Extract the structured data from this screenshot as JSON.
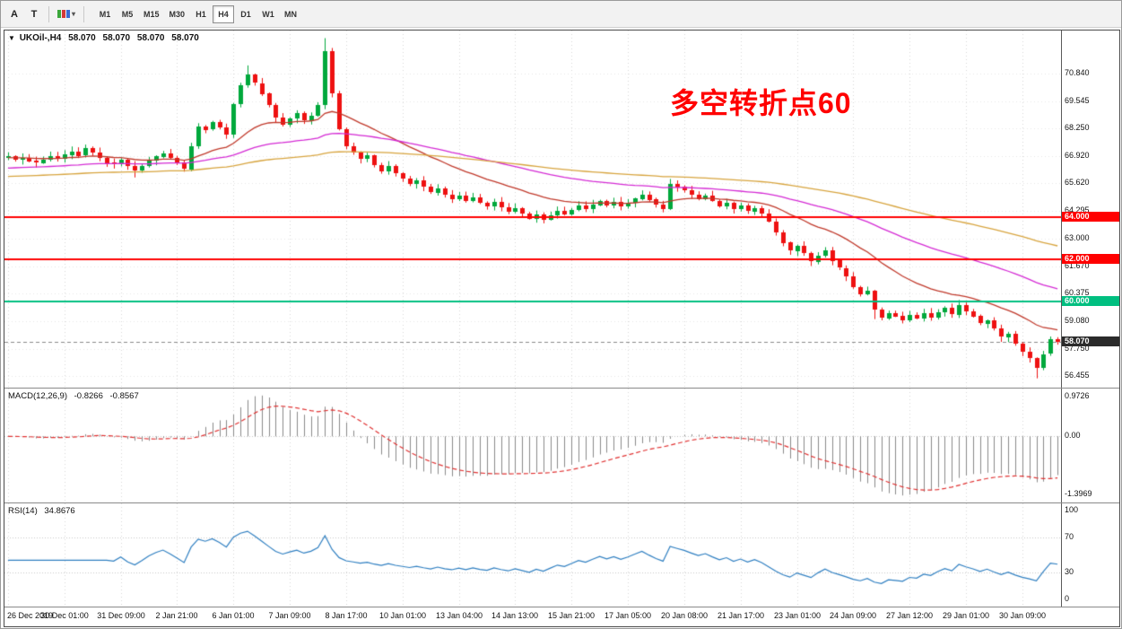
{
  "toolbar": {
    "buttons": [
      {
        "label": "A"
      },
      {
        "label": "T"
      }
    ],
    "dropdown_caret": "▾",
    "timeframes": [
      {
        "label": "M1",
        "active": false
      },
      {
        "label": "M5",
        "active": false
      },
      {
        "label": "M15",
        "active": false
      },
      {
        "label": "M30",
        "active": false
      },
      {
        "label": "H1",
        "active": false
      },
      {
        "label": "H4",
        "active": true
      },
      {
        "label": "D1",
        "active": false
      },
      {
        "label": "W1",
        "active": false
      },
      {
        "label": "MN",
        "active": false
      }
    ]
  },
  "chart": {
    "header": {
      "expander": "▼",
      "symbol": "UKOil-,H4",
      "open": "58.070",
      "high": "58.070",
      "low": "58.070",
      "close": "58.070"
    },
    "annotation": {
      "text": "多空转折点60",
      "color": "#ff0000"
    },
    "price_axis": {
      "items": [
        {
          "t": "70.840",
          "p": 70.84
        },
        {
          "t": "69.545",
          "p": 69.545
        },
        {
          "t": "68.250",
          "p": 68.25
        },
        {
          "t": "66.920",
          "p": 66.92
        },
        {
          "t": "65.620",
          "p": 65.62
        },
        {
          "t": "64.295",
          "p": 64.295
        },
        {
          "t": "63.000",
          "p": 63.0
        },
        {
          "t": "61.670",
          "p": 61.67
        },
        {
          "t": "60.375",
          "p": 60.375
        },
        {
          "t": "59.080",
          "p": 59.08
        },
        {
          "t": "57.750",
          "p": 57.75
        },
        {
          "t": "56.455",
          "p": 56.455
        }
      ]
    },
    "levels": [
      {
        "label": "64.000",
        "price": 64.0,
        "color": "#ff0000"
      },
      {
        "label": "62.000",
        "price": 62.0,
        "color": "#ff0000"
      },
      {
        "label": "60.000",
        "price": 60.0,
        "color": "#00bf80"
      }
    ],
    "current_price": {
      "label": "58.070",
      "price": 58.07,
      "bg": "#2b2b2b"
    }
  },
  "macd": {
    "title": "MACD(12,26,9)",
    "value": "-0.8266",
    "signal_value": "-0.8567",
    "scale_top": "0.9726",
    "scale_zero": "0.00",
    "scale_bottom": "-1.3969"
  },
  "rsi": {
    "title": "RSI(14)",
    "value": "34.8676",
    "scale": [
      {
        "t": "100",
        "v": 100
      },
      {
        "t": "70",
        "v": 70
      },
      {
        "t": "30",
        "v": 30
      },
      {
        "t": "0",
        "v": 0
      }
    ],
    "levels": [
      70,
      30
    ]
  },
  "time_axis": {
    "labels": [
      "26 Dec 2019",
      "30 Dec 01:00",
      "31 Dec 09:00",
      "2 Jan 21:00",
      "6 Jan 01:00",
      "7 Jan 09:00",
      "8 Jan 17:00",
      "10 Jan 01:00",
      "13 Jan 04:00",
      "14 Jan 13:00",
      "15 Jan 21:00",
      "17 Jan 05:00",
      "20 Jan 08:00",
      "21 Jan 17:00",
      "23 Jan 01:00",
      "24 Jan 09:00",
      "27 Jan 12:00",
      "29 Jan 01:00",
      "30 Jan 09:00"
    ]
  },
  "chart_data": {
    "type": "candlestick",
    "symbol": "UKOil-",
    "timeframe": "H4",
    "title": "UKOil-,H4",
    "y_range": [
      55.9,
      72.9
    ],
    "tick_step": 8,
    "first_open": 66.8,
    "closes": [
      66.9,
      66.75,
      66.85,
      66.7,
      66.6,
      66.75,
      66.9,
      66.8,
      67.0,
      67.15,
      66.95,
      67.3,
      67.1,
      66.85,
      66.6,
      66.55,
      66.75,
      66.45,
      66.25,
      66.45,
      66.7,
      66.9,
      67.05,
      66.85,
      66.6,
      66.3,
      67.4,
      68.35,
      68.2,
      68.55,
      68.3,
      67.95,
      69.4,
      70.3,
      70.8,
      70.4,
      69.9,
      69.35,
      68.75,
      68.4,
      68.7,
      68.95,
      68.6,
      68.85,
      69.35,
      71.9,
      69.9,
      68.2,
      67.4,
      67.1,
      66.8,
      66.95,
      66.5,
      66.2,
      66.45,
      66.1,
      65.85,
      65.6,
      65.75,
      65.45,
      65.2,
      65.4,
      65.1,
      64.9,
      65.05,
      64.8,
      64.95,
      64.7,
      64.55,
      64.75,
      64.5,
      64.3,
      64.45,
      64.2,
      63.95,
      64.15,
      63.9,
      64.1,
      64.3,
      64.15,
      64.35,
      64.55,
      64.4,
      64.6,
      64.8,
      64.6,
      64.75,
      64.55,
      64.7,
      64.9,
      65.1,
      64.85,
      64.6,
      64.4,
      65.6,
      65.45,
      65.3,
      65.1,
      64.9,
      65.05,
      64.8,
      64.55,
      64.7,
      64.4,
      64.55,
      64.3,
      64.45,
      64.2,
      63.8,
      63.3,
      62.8,
      62.4,
      62.65,
      62.3,
      61.9,
      62.2,
      62.45,
      61.95,
      61.6,
      61.2,
      60.7,
      60.35,
      60.5,
      59.6,
      59.2,
      59.45,
      59.3,
      59.1,
      59.35,
      59.2,
      59.45,
      59.25,
      59.5,
      59.7,
      59.4,
      59.85,
      59.55,
      59.3,
      58.95,
      59.1,
      58.7,
      58.3,
      58.45,
      58.0,
      57.6,
      57.3,
      56.85,
      57.5,
      58.2,
      58.07
    ],
    "high_boost": {
      "34": 0.25,
      "45": 0.45
    },
    "low_boost": {
      "18": 0.15,
      "123": 0.2,
      "146": 0.3
    },
    "ma": [
      {
        "period": 21,
        "color": "#c0392b",
        "seed_offset": -0.05
      },
      {
        "period": 56,
        "color": "#d42ad4",
        "seed_offset": -0.55
      },
      {
        "period": 120,
        "color": "#d7a43e",
        "seed_offset": -0.95
      }
    ],
    "indicators": [
      {
        "name": "MACD",
        "params": [
          12,
          26,
          9
        ]
      },
      {
        "name": "RSI",
        "params": [
          14
        ]
      }
    ],
    "colors": {
      "up": "#00a83c",
      "down": "#ee1111",
      "grid": "#d7d7d7",
      "hgrid": "#e6e6e6",
      "macd_hist": "#8a8a8a",
      "macd_signal": "#e03232",
      "rsi_line": "#2f7fc1",
      "level_dot": "#c8c8c8",
      "cur_dash": "#8a8a8a"
    }
  }
}
